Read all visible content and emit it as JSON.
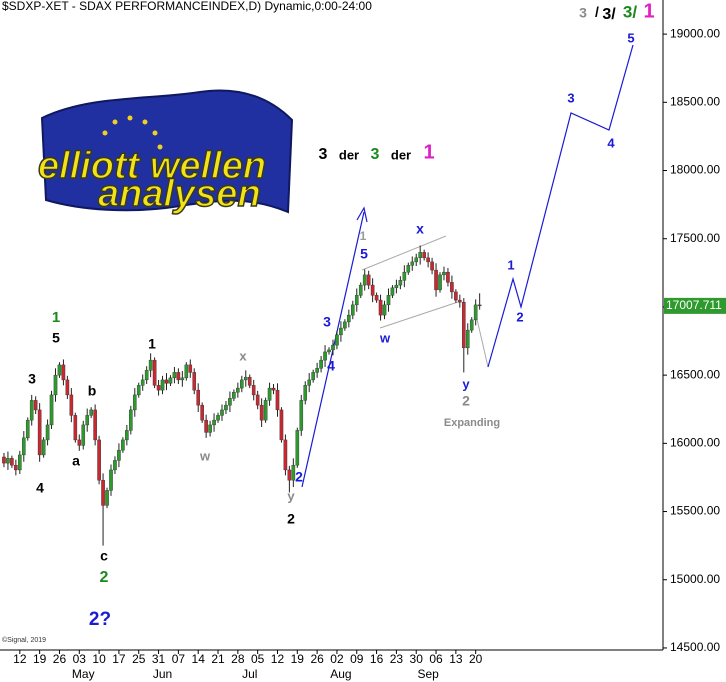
{
  "chart_data": {
    "type": "candlestick",
    "title": "$SDXP-XET - SDAX PERFORMANCEINDEX,D) Dynamic,0:00-24:00",
    "copyright": "©Signal, 2019",
    "logo_lines": [
      "elliott wellen",
      "analysen"
    ],
    "up_color": "#2e9a2e",
    "down_color": "#c8282f",
    "xlim": [
      -1,
      166
    ],
    "ylim": [
      14485,
      19250
    ],
    "yticks": [
      {
        "value": 14500,
        "label": "14500.00"
      },
      {
        "value": 15000,
        "label": "15000.00"
      },
      {
        "value": 15500,
        "label": "15500.00"
      },
      {
        "value": 16000,
        "label": "16000.00"
      },
      {
        "value": 16500,
        "label": "16500.00"
      },
      {
        "value": 17000,
        "label": "17000.00"
      },
      {
        "value": 17500,
        "label": "17500.00"
      },
      {
        "value": 18000,
        "label": "18000.00"
      },
      {
        "value": 18500,
        "label": "18500.00"
      },
      {
        "value": 19000,
        "label": "19000.00"
      }
    ],
    "xticks": [
      {
        "value": 4,
        "label": "12"
      },
      {
        "value": 9,
        "label": "19"
      },
      {
        "value": 14,
        "label": "26"
      },
      {
        "value": 19,
        "label": "03"
      },
      {
        "value": 24,
        "label": "10"
      },
      {
        "value": 29,
        "label": "17"
      },
      {
        "value": 34,
        "label": "25"
      },
      {
        "value": 39,
        "label": "31"
      },
      {
        "value": 44,
        "label": "07"
      },
      {
        "value": 49,
        "label": "14"
      },
      {
        "value": 54,
        "label": "21"
      },
      {
        "value": 59,
        "label": "28"
      },
      {
        "value": 64,
        "label": "05"
      },
      {
        "value": 69,
        "label": "12"
      },
      {
        "value": 74,
        "label": "19"
      },
      {
        "value": 79,
        "label": "26"
      },
      {
        "value": 84,
        "label": "02"
      },
      {
        "value": 89,
        "label": "09"
      },
      {
        "value": 94,
        "label": "16"
      },
      {
        "value": 99,
        "label": "23"
      },
      {
        "value": 104,
        "label": "30"
      },
      {
        "value": 109,
        "label": "06"
      },
      {
        "value": 114,
        "label": "13"
      },
      {
        "value": 119,
        "label": "20"
      }
    ],
    "month_labels": [
      {
        "value": 20,
        "label": "May"
      },
      {
        "value": 40,
        "label": "Jun"
      },
      {
        "value": 62,
        "label": "Jul"
      },
      {
        "value": 85,
        "label": "Aug"
      },
      {
        "value": 107,
        "label": "Sep"
      }
    ],
    "open": [
      15900,
      15855,
      15890,
      15840,
      15805,
      15915,
      16040,
      16170,
      16315,
      16245,
      15915,
      16025,
      16135,
      16355,
      16500,
      16575,
      16465,
      16355,
      16205,
      16025,
      15985,
      16135,
      16205,
      16245,
      16025,
      15730,
      15545,
      15655,
      15805,
      15875,
      15950,
      16025,
      16095,
      16245,
      16355,
      16425,
      16465,
      16535,
      16610,
      16425,
      16390,
      16465,
      16440,
      16480,
      16520,
      16465,
      16480,
      16575,
      16520,
      16390,
      16280,
      16170,
      16080,
      16135,
      16170,
      16205,
      16245,
      16280,
      16330,
      16375,
      16405,
      16465,
      16485,
      16425,
      16355,
      16280,
      16170,
      16315,
      16405,
      16390,
      16245,
      16025,
      15805,
      15730,
      15840,
      16095,
      16315,
      16425,
      16465,
      16520,
      16550,
      16610,
      16670,
      16685,
      16720,
      16795,
      16845,
      16890,
      16940,
      17015,
      17085,
      17160,
      17235,
      17160,
      17085,
      17050,
      16940,
      17015,
      17085,
      17140,
      17160,
      17195,
      17255,
      17305,
      17330,
      17360,
      17400,
      17360,
      17330,
      17270,
      17125,
      17235,
      17255,
      17180,
      17110,
      17050,
      17035,
      16700,
      16830,
      16905,
      17015
    ],
    "high": [
      15930,
      15940,
      15910,
      15880,
      15945,
      16090,
      16190,
      16355,
      16345,
      16295,
      16045,
      16175,
      16385,
      16550,
      16595,
      16615,
      16495,
      16405,
      16225,
      16065,
      16165,
      16255,
      16265,
      16285,
      16055,
      15780,
      15675,
      15845,
      15905,
      16000,
      16045,
      16135,
      16275,
      16405,
      16445,
      16505,
      16565,
      16660,
      16630,
      16465,
      16495,
      16515,
      16500,
      16560,
      16550,
      16530,
      16595,
      16615,
      16550,
      16440,
      16300,
      16210,
      16165,
      16220,
      16225,
      16285,
      16310,
      16380,
      16395,
      16445,
      16495,
      16535,
      16505,
      16465,
      16385,
      16330,
      16335,
      16445,
      16435,
      16440,
      16265,
      16065,
      15835,
      15890,
      16115,
      16355,
      16455,
      16515,
      16540,
      16590,
      16640,
      16720,
      16705,
      16760,
      16825,
      16895,
      16910,
      16980,
      17045,
      17135,
      17180,
      17275,
      17265,
      17210,
      17105,
      17090,
      17045,
      17135,
      17160,
      17200,
      17225,
      17305,
      17325,
      17370,
      17390,
      17450,
      17420,
      17400,
      17360,
      17320,
      17255,
      17295,
      17285,
      17230,
      17130,
      17090,
      17065,
      16880,
      16925,
      17055,
      17100
    ],
    "low": [
      15825,
      15805,
      15820,
      15765,
      15775,
      15865,
      16020,
      16130,
      16215,
      15865,
      15895,
      15985,
      16105,
      16305,
      16480,
      16425,
      16325,
      16155,
      16005,
      15945,
      15955,
      16085,
      16185,
      15985,
      15700,
      15250,
      15525,
      15615,
      15775,
      15825,
      15930,
      15985,
      16065,
      16195,
      16335,
      16385,
      16435,
      16485,
      16405,
      16350,
      16360,
      16390,
      16420,
      16440,
      16435,
      16415,
      16460,
      16480,
      16360,
      16230,
      16150,
      16040,
      16050,
      16085,
      16150,
      16165,
      16215,
      16230,
      16310,
      16335,
      16375,
      16415,
      16405,
      16315,
      16250,
      16120,
      16150,
      16275,
      16360,
      16195,
      16005,
      15765,
      15640,
      15680,
      15820,
      16055,
      16285,
      16375,
      16445,
      16480,
      16520,
      16560,
      16650,
      16645,
      16690,
      16745,
      16825,
      16850,
      16910,
      16965,
      17065,
      17120,
      17130,
      17035,
      17030,
      16900,
      16910,
      16965,
      17065,
      17100,
      17130,
      17145,
      17235,
      17265,
      17300,
      17310,
      17340,
      17290,
      17240,
      17075,
      17105,
      17195,
      17150,
      17060,
      17030,
      16995,
      16520,
      16650,
      16810,
      16865,
      16980
    ],
    "close": [
      15855,
      15890,
      15840,
      15805,
      15915,
      16040,
      16170,
      16315,
      16245,
      15915,
      16025,
      16135,
      16355,
      16500,
      16575,
      16465,
      16355,
      16205,
      16025,
      15985,
      16135,
      16205,
      16245,
      16025,
      15730,
      15545,
      15655,
      15805,
      15875,
      15950,
      16025,
      16095,
      16245,
      16355,
      16425,
      16465,
      16535,
      16610,
      16425,
      16390,
      16465,
      16440,
      16480,
      16520,
      16465,
      16480,
      16575,
      16520,
      16390,
      16280,
      16170,
      16080,
      16135,
      16170,
      16205,
      16245,
      16280,
      16330,
      16375,
      16405,
      16465,
      16485,
      16425,
      16355,
      16280,
      16170,
      16315,
      16405,
      16390,
      16245,
      16025,
      15805,
      15730,
      15840,
      16095,
      16315,
      16425,
      16465,
      16520,
      16550,
      16610,
      16670,
      16685,
      16720,
      16795,
      16845,
      16890,
      16940,
      17015,
      17085,
      17160,
      17235,
      17160,
      17085,
      17050,
      16940,
      17015,
      17085,
      17140,
      17160,
      17195,
      17255,
      17305,
      17330,
      17360,
      17400,
      17360,
      17330,
      17270,
      17125,
      17235,
      17255,
      17180,
      17110,
      17050,
      17035,
      16700,
      16830,
      16905,
      17015,
      17007.711
    ],
    "annotations": [
      {
        "text": "1",
        "color": "#1a8a1a"
      },
      {
        "text": "5",
        "color": "#000000"
      },
      {
        "text": "3",
        "color": "#000000"
      },
      {
        "text": "b",
        "color": "#000000"
      },
      {
        "text": "4",
        "color": "#000000"
      },
      {
        "text": "a",
        "color": "#000000"
      },
      {
        "text": "c",
        "color": "#000000"
      },
      {
        "text": "2",
        "color": "#1a8a1a"
      },
      {
        "text": "2?",
        "color": "#1a1ad6"
      },
      {
        "text": "1",
        "color": "#000000"
      },
      {
        "text": "x",
        "color": "#8a8a8a"
      },
      {
        "text": "w",
        "color": "#8a8a8a"
      },
      {
        "text": "y",
        "color": "#8a8a8a"
      },
      {
        "text": "2",
        "color": "#000000"
      },
      {
        "text": "2",
        "color": "#1a1ad6"
      },
      {
        "text": "3",
        "color": "#1a1ad6"
      },
      {
        "text": "4",
        "color": "#1a1ad6"
      },
      {
        "text": "1",
        "color": "#9a9a9a"
      },
      {
        "text": "5",
        "color": "#1a1ad6"
      },
      {
        "text": "x",
        "color": "#1a1ad6"
      },
      {
        "text": "w",
        "color": "#1a1ad6"
      },
      {
        "text": "y",
        "color": "#1a1ad6"
      },
      {
        "text": "2",
        "color": "#8a8a8a"
      },
      {
        "text": "Expanding",
        "color": "#8a8a8a"
      },
      {
        "text": "1",
        "color": "#1a1ad6"
      },
      {
        "text": "2",
        "color": "#1a1ad6"
      },
      {
        "text": "3",
        "color": "#1a1ad6"
      },
      {
        "text": "4",
        "color": "#1a1ad6"
      },
      {
        "text": "5",
        "color": "#1a1ad6"
      },
      {
        "text": "3",
        "color": "#8a8a8a"
      },
      {
        "text": "/",
        "color": "#000000"
      },
      {
        "text": "3/",
        "color": "#000000"
      },
      {
        "text": "3/",
        "color": "#1a8a1a"
      },
      {
        "text": "1",
        "color": "#e020c0"
      },
      {
        "text": "3",
        "color": "#000000"
      },
      {
        "text": "der",
        "color": "#000000"
      },
      {
        "text": "3",
        "color": "#1a8a1a"
      },
      {
        "text": "der",
        "color": "#000000"
      },
      {
        "text": "1",
        "color": "#e020c0"
      }
    ]
  }
}
